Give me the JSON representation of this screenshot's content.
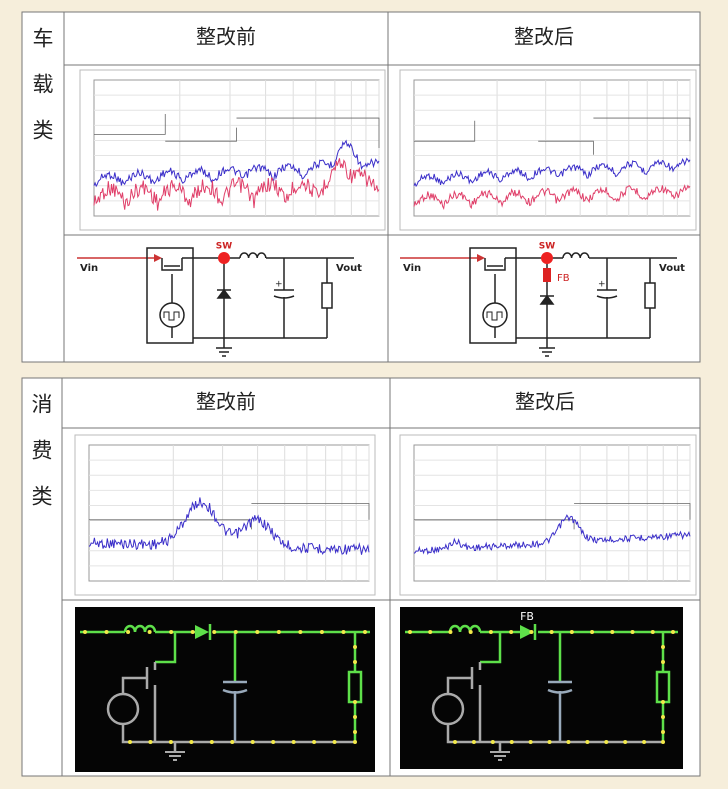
{
  "sections": [
    {
      "label": [
        "车",
        "载",
        "类"
      ],
      "columns": [
        {
          "heading": "整改前",
          "circuit_labels": {
            "input": "Vin",
            "switch": "SW",
            "output": "Vout"
          }
        },
        {
          "heading": "整改后",
          "circuit_labels": {
            "input": "Vin",
            "switch": "SW",
            "bead": "FB",
            "output": "Vout"
          }
        }
      ]
    },
    {
      "label": [
        "消",
        "费",
        "类"
      ],
      "columns": [
        {
          "heading": "整改前"
        },
        {
          "heading": "整改后",
          "circuit_labels": {
            "bead": "FB"
          }
        }
      ]
    }
  ]
}
